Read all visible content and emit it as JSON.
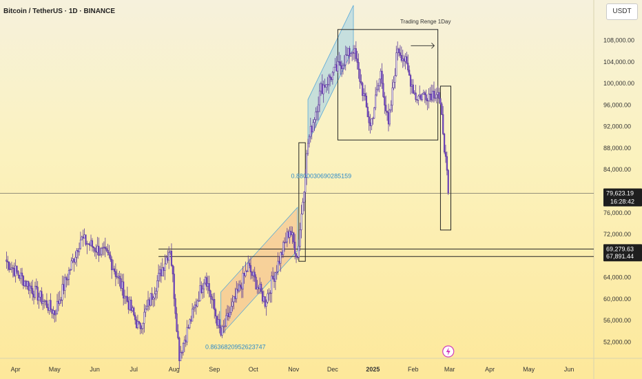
{
  "header": {
    "title": "Bitcoin / TetherUS · 1D · BINANCE",
    "currency_button": "USDT"
  },
  "price_axis_labels": [
    "108,000.00",
    "104,000.00",
    "100,000.00",
    "96,000.00",
    "92,000.00",
    "88,000.00",
    "84,000.00",
    "76,000.00",
    "72,000.00",
    "64,000.00",
    "60,000.00",
    "56,000.00",
    "52,000.00"
  ],
  "time_axis_labels": [
    "Apr",
    "May",
    "Jun",
    "Jul",
    "Aug",
    "Sep",
    "Oct",
    "Nov",
    "Dec",
    "2025",
    "Feb",
    "Mar",
    "Apr",
    "May",
    "Jun"
  ],
  "price_tags": {
    "current_price": "79,623.19",
    "countdown": "16:28:42",
    "upper_level": "69,279.63",
    "lower_level": "67,891.44"
  },
  "annotations": {
    "range_label": "Trading Renge 1Day",
    "fib_top": "0.8800030690285159",
    "fib_bottom": "0.8636820952623747"
  },
  "chart_data": {
    "type": "candlestick",
    "title": "Bitcoin / TetherUS · 1D · BINANCE",
    "ylim": [
      49000,
      111000
    ],
    "x_range": [
      "2024-03-20",
      "2025-06-20"
    ],
    "grid": false,
    "levels": [
      69279.63,
      67891.44
    ],
    "current_price": 79623.19,
    "key_points": [
      {
        "date": "2024-03-25",
        "price": 67000
      },
      {
        "date": "2024-04-13",
        "price": 62000
      },
      {
        "date": "2024-05-01",
        "price": 57500
      },
      {
        "date": "2024-05-21",
        "price": 71200
      },
      {
        "date": "2024-06-12",
        "price": 67800
      },
      {
        "date": "2024-07-05",
        "price": 54500
      },
      {
        "date": "2024-07-29",
        "price": 69600
      },
      {
        "date": "2024-08-05",
        "price": 49600
      },
      {
        "date": "2024-08-25",
        "price": 64500
      },
      {
        "date": "2024-09-06",
        "price": 53300
      },
      {
        "date": "2024-09-27",
        "price": 66000
      },
      {
        "date": "2024-10-10",
        "price": 59500
      },
      {
        "date": "2024-10-29",
        "price": 73000
      },
      {
        "date": "2024-11-04",
        "price": 67800
      },
      {
        "date": "2024-11-12",
        "price": 89000
      },
      {
        "date": "2024-11-22",
        "price": 99000
      },
      {
        "date": "2024-12-17",
        "price": 106500
      },
      {
        "date": "2024-12-30",
        "price": 92000
      },
      {
        "date": "2025-01-07",
        "price": 102000
      },
      {
        "date": "2025-01-13",
        "price": 91800
      },
      {
        "date": "2025-01-20",
        "price": 106800
      },
      {
        "date": "2025-01-25",
        "price": 104500
      },
      {
        "date": "2025-02-03",
        "price": 97500
      },
      {
        "date": "2025-02-20",
        "price": 98500
      },
      {
        "date": "2025-02-24",
        "price": 91500
      },
      {
        "date": "2025-02-28",
        "price": 79623
      }
    ],
    "price_ticks": [
      108000,
      104000,
      100000,
      96000,
      92000,
      88000,
      84000,
      76000,
      72000,
      64000,
      60000,
      56000,
      52000
    ],
    "month_ticks": [
      {
        "label": "Apr",
        "date": "2024-04-01"
      },
      {
        "label": "May",
        "date": "2024-05-01"
      },
      {
        "label": "Jun",
        "date": "2024-06-01"
      },
      {
        "label": "Jul",
        "date": "2024-07-01"
      },
      {
        "label": "Aug",
        "date": "2024-08-01"
      },
      {
        "label": "Sep",
        "date": "2024-09-01"
      },
      {
        "label": "Oct",
        "date": "2024-10-01"
      },
      {
        "label": "Nov",
        "date": "2024-11-01"
      },
      {
        "label": "Dec",
        "date": "2024-12-01"
      },
      {
        "label": "2025",
        "date": "2025-01-01"
      },
      {
        "label": "Feb",
        "date": "2025-02-01"
      },
      {
        "label": "Mar",
        "date": "2025-03-01"
      },
      {
        "label": "Apr",
        "date": "2025-04-01"
      },
      {
        "label": "May",
        "date": "2025-05-01"
      },
      {
        "label": "Jun",
        "date": "2025-06-01"
      }
    ],
    "trading_range_box": {
      "date_start": "2024-12-05",
      "date_end": "2025-02-20",
      "price_high": 110000,
      "price_low": 89500
    },
    "drop_box": {
      "date_start": "2025-02-22",
      "date_end": "2025-03-02",
      "price_high": 99500,
      "price_low": 72800
    },
    "breakout_box": {
      "date_start": "2024-11-05",
      "date_end": "2024-11-10",
      "price_high": 89000,
      "price_low": 67000
    },
    "channels": [
      {
        "name": "lower",
        "from": {
          "date": "2024-09-06",
          "price": 53300
        },
        "to": {
          "date": "2024-11-04",
          "price": 69000
        },
        "width": 8000
      },
      {
        "name": "upper",
        "from": {
          "date": "2024-11-12",
          "price": 89000
        },
        "to": {
          "date": "2024-12-17",
          "price": 106500
        },
        "width": 8000
      }
    ],
    "colors": {
      "up": "#ffffff",
      "down": "#7b4bd0",
      "wick": "#5b3a99",
      "channel_upper": "#9fd0e6",
      "channel_lower": "#f3b98a",
      "line": "#222222",
      "fib": "#2d8bc9",
      "tag_dark": "#1e1e1e",
      "signal": "#d13cbc"
    }
  }
}
